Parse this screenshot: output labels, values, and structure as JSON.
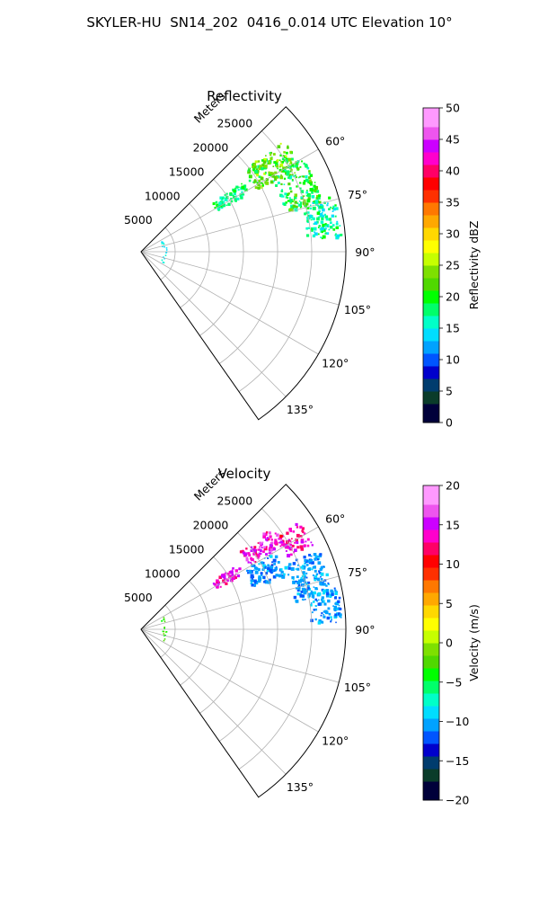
{
  "figure": {
    "title": "SKYLER-HU  SN14_202  0416_0.014 UTC Elevation 10°"
  },
  "chart_data": [
    {
      "type": "polar-sector",
      "title": "Reflectivity",
      "radial_axis": {
        "label": "Meters",
        "range": [
          0,
          30000
        ],
        "ticks": [
          5000,
          10000,
          15000,
          20000,
          25000
        ],
        "tick_labels": [
          "5000",
          "10000",
          "15000",
          "20000",
          "25000"
        ]
      },
      "angular_axis": {
        "range_deg": [
          45,
          145
        ],
        "gridlines_deg": [
          45,
          60,
          75,
          90,
          105,
          120,
          135,
          145
        ],
        "tick_labels": [
          "60°",
          "75°",
          "90°",
          "105°",
          "120°",
          "135°"
        ],
        "tick_values_deg": [
          60,
          75,
          90,
          105,
          120,
          135
        ]
      },
      "grid": true,
      "colorbar": {
        "label": "Reflectivity dBZ",
        "range": [
          0,
          50
        ],
        "ticks": [
          0,
          5,
          10,
          15,
          20,
          25,
          30,
          35,
          40,
          45,
          50
        ],
        "tick_labels": [
          "0",
          "5",
          "10",
          "15",
          "20",
          "25",
          "30",
          "35",
          "40",
          "45",
          "50"
        ],
        "colormap_stops": [
          [
            "#00003a",
            0
          ],
          [
            "#0a3c2a",
            0.06
          ],
          [
            "#003c6e",
            0.1
          ],
          [
            "#0000cc",
            0.14
          ],
          [
            "#0055ff",
            0.18
          ],
          [
            "#00a2ff",
            0.22
          ],
          [
            "#00ddff",
            0.26
          ],
          [
            "#00ffc8",
            0.3
          ],
          [
            "#00ff6a",
            0.34
          ],
          [
            "#00ff00",
            0.38
          ],
          [
            "#50d800",
            0.42
          ],
          [
            "#7ee000",
            0.46
          ],
          [
            "#c6ff00",
            0.5
          ],
          [
            "#ffff00",
            0.54
          ],
          [
            "#ffd800",
            0.58
          ],
          [
            "#ffa800",
            0.62
          ],
          [
            "#ff7800",
            0.66
          ],
          [
            "#ff3000",
            0.7
          ],
          [
            "#ff0000",
            0.74
          ],
          [
            "#ff0066",
            0.78
          ],
          [
            "#ff00cc",
            0.82
          ],
          [
            "#cc00ff",
            0.86
          ],
          [
            "#ee55ee",
            0.9
          ],
          [
            "#ff99ff",
            0.94
          ],
          [
            "#ffd8ff",
            1.0
          ]
        ]
      },
      "echo_regions": [
        {
          "az_range": [
            52,
            62
          ],
          "r_range": [
            19000,
            26500
          ],
          "value_range": [
            18,
            26
          ]
        },
        {
          "az_range": [
            60,
            75
          ],
          "r_range": [
            22000,
            27500
          ],
          "value_range": [
            16,
            24
          ]
        },
        {
          "az_range": [
            74,
            86
          ],
          "r_range": [
            24500,
            29500
          ],
          "value_range": [
            14,
            20
          ]
        },
        {
          "az_range": [
            56,
            62
          ],
          "r_range": [
            12500,
            18000
          ],
          "value_range": [
            15,
            20
          ]
        },
        {
          "az_range": [
            62,
            120
          ],
          "r_range": [
            3200,
            3800
          ],
          "value_range": [
            13,
            17
          ]
        }
      ]
    },
    {
      "type": "polar-sector",
      "title": "Velocity",
      "radial_axis": {
        "label": "Meters",
        "range": [
          0,
          30000
        ],
        "ticks": [
          5000,
          10000,
          15000,
          20000,
          25000
        ],
        "tick_labels": [
          "5000",
          "10000",
          "15000",
          "20000",
          "25000"
        ]
      },
      "angular_axis": {
        "range_deg": [
          45,
          145
        ],
        "gridlines_deg": [
          45,
          60,
          75,
          90,
          105,
          120,
          135,
          145
        ],
        "tick_labels": [
          "60°",
          "75°",
          "90°",
          "105°",
          "120°",
          "135°"
        ],
        "tick_values_deg": [
          60,
          75,
          90,
          105,
          120,
          135
        ]
      },
      "grid": true,
      "colorbar": {
        "label": "Velocity (m/s)",
        "range": [
          -20,
          20
        ],
        "ticks": [
          -20,
          -15,
          -10,
          -5,
          0,
          5,
          10,
          15,
          20
        ],
        "tick_labels": [
          "−20",
          "−15",
          "−10",
          "−5",
          "0",
          "5",
          "10",
          "15",
          "20"
        ],
        "colormap_stops": [
          [
            "#00003a",
            0
          ],
          [
            "#0a3c2a",
            0.06
          ],
          [
            "#003c6e",
            0.1
          ],
          [
            "#0000cc",
            0.14
          ],
          [
            "#0055ff",
            0.18
          ],
          [
            "#00a2ff",
            0.22
          ],
          [
            "#00ddff",
            0.26
          ],
          [
            "#00ffc8",
            0.3
          ],
          [
            "#00ff6a",
            0.34
          ],
          [
            "#00ff00",
            0.38
          ],
          [
            "#50d800",
            0.42
          ],
          [
            "#7ee000",
            0.46
          ],
          [
            "#c6ff00",
            0.5
          ],
          [
            "#ffff00",
            0.54
          ],
          [
            "#ffd800",
            0.58
          ],
          [
            "#ffa800",
            0.62
          ],
          [
            "#ff7800",
            0.66
          ],
          [
            "#ff3000",
            0.7
          ],
          [
            "#ff0000",
            0.74
          ],
          [
            "#ff0066",
            0.78
          ],
          [
            "#ff00cc",
            0.82
          ],
          [
            "#cc00ff",
            0.86
          ],
          [
            "#ee55ee",
            0.9
          ],
          [
            "#ff99ff",
            0.94
          ],
          [
            "#ffd8ff",
            1.0
          ]
        ]
      },
      "echo_regions": [
        {
          "az_range": [
            52,
            60
          ],
          "r_range": [
            18500,
            24500
          ],
          "value_range": [
            12,
            17
          ]
        },
        {
          "az_range": [
            56,
            64
          ],
          "r_range": [
            24000,
            28000
          ],
          "value_range": [
            11,
            16
          ]
        },
        {
          "az_range": [
            60,
            70
          ],
          "r_range": [
            17500,
            22500
          ],
          "value_range": [
            -13,
            -9
          ]
        },
        {
          "az_range": [
            66,
            80
          ],
          "r_range": [
            23000,
            28500
          ],
          "value_range": [
            -12,
            -9
          ]
        },
        {
          "az_range": [
            78,
            88
          ],
          "r_range": [
            25000,
            29500
          ],
          "value_range": [
            -12,
            -9
          ]
        },
        {
          "az_range": [
            56,
            62
          ],
          "r_range": [
            12500,
            17000
          ],
          "value_range": [
            12,
            16
          ]
        },
        {
          "az_range": [
            62,
            120
          ],
          "r_range": [
            3200,
            3800
          ],
          "value_range": [
            -4,
            -1
          ]
        }
      ]
    }
  ]
}
